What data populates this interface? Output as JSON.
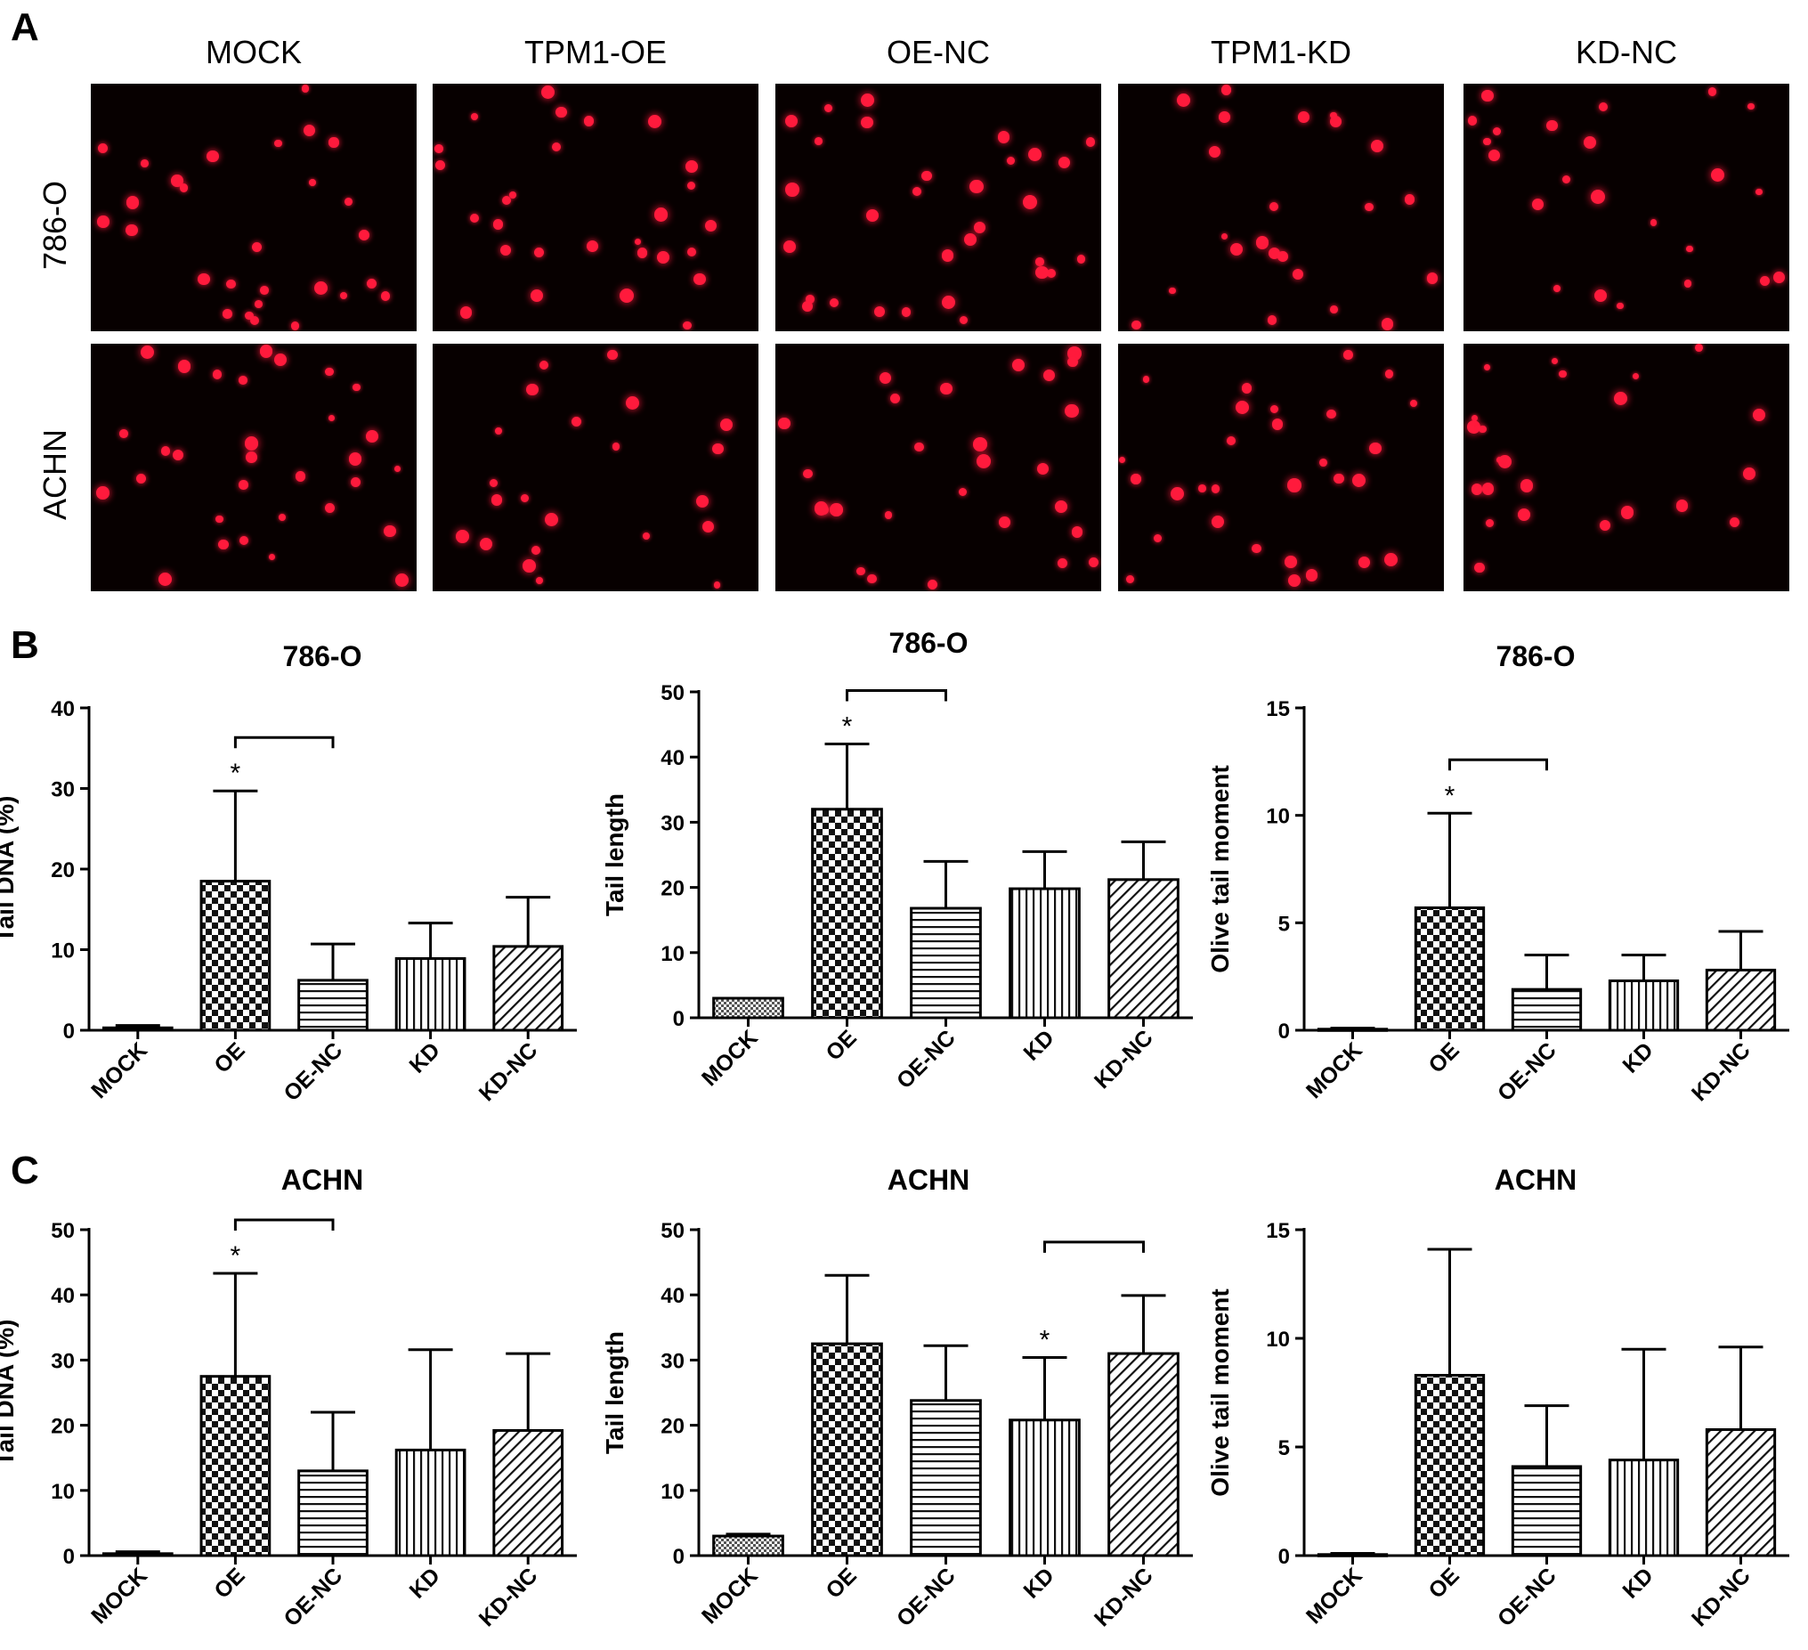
{
  "panel_labels": {
    "a": "A",
    "b": "B",
    "c": "C"
  },
  "panel_a": {
    "columns": [
      "MOCK",
      "TPM1-OE",
      "OE-NC",
      "TPM1-KD",
      "KD-NC"
    ],
    "rows": [
      "786-O",
      "ACHN"
    ],
    "cell_color": "#ff1a3c",
    "background_color": "#070000"
  },
  "chart_data": [
    {
      "type": "bar",
      "title": "786-O",
      "ylabel": "Tail DNA (%)",
      "xlabel": "",
      "categories": [
        "MOCK",
        "OE",
        "OE-NC",
        "KD",
        "KD-NC"
      ],
      "values": [
        0.3,
        18.5,
        6.2,
        8.9,
        10.4
      ],
      "errors": [
        0.3,
        11.2,
        4.5,
        4.4,
        6.1
      ],
      "ylim": [
        0,
        40
      ],
      "yticks": [
        0,
        10,
        20,
        30,
        40
      ],
      "significance": [
        {
          "from": "OE",
          "to": "OE-NC",
          "star_on": "OE",
          "label": "*"
        }
      ]
    },
    {
      "type": "bar",
      "title": "786-O",
      "ylabel": "Tail length",
      "xlabel": "",
      "categories": [
        "MOCK",
        "OE",
        "OE-NC",
        "KD",
        "KD-NC"
      ],
      "values": [
        3.0,
        32.0,
        16.8,
        19.8,
        21.2
      ],
      "errors": [
        0,
        10.0,
        7.2,
        5.7,
        5.8
      ],
      "ylim": [
        0,
        50
      ],
      "yticks": [
        0,
        10,
        20,
        30,
        40,
        50
      ],
      "significance": [
        {
          "from": "OE",
          "to": "OE-NC",
          "star_on": "OE",
          "label": "*"
        }
      ]
    },
    {
      "type": "bar",
      "title": "786-O",
      "ylabel": "Olive tail moment",
      "xlabel": "",
      "categories": [
        "MOCK",
        "OE",
        "OE-NC",
        "KD",
        "KD-NC"
      ],
      "values": [
        0.05,
        5.7,
        1.9,
        2.3,
        2.8
      ],
      "errors": [
        0.05,
        4.4,
        1.6,
        1.2,
        1.8
      ],
      "ylim": [
        0,
        15
      ],
      "yticks": [
        0,
        5,
        10,
        15
      ],
      "significance": [
        {
          "from": "OE",
          "to": "OE-NC",
          "star_on": "OE",
          "label": "*"
        }
      ]
    },
    {
      "type": "bar",
      "title": "ACHN",
      "ylabel": "Tail DNA (%)",
      "xlabel": "",
      "categories": [
        "MOCK",
        "OE",
        "OE-NC",
        "KD",
        "KD-NC"
      ],
      "values": [
        0.3,
        27.5,
        13.0,
        16.2,
        19.2
      ],
      "errors": [
        0.3,
        15.8,
        9.0,
        15.4,
        11.8
      ],
      "ylim": [
        0,
        50
      ],
      "yticks": [
        0,
        10,
        20,
        30,
        40,
        50
      ],
      "significance": [
        {
          "from": "OE",
          "to": "OE-NC",
          "star_on": "OE",
          "label": "*"
        }
      ]
    },
    {
      "type": "bar",
      "title": "ACHN",
      "ylabel": "Tail length",
      "xlabel": "",
      "categories": [
        "MOCK",
        "OE",
        "OE-NC",
        "KD",
        "KD-NC"
      ],
      "values": [
        3.0,
        32.5,
        23.8,
        20.8,
        31.0
      ],
      "errors": [
        0.3,
        10.5,
        8.4,
        9.6,
        8.9
      ],
      "ylim": [
        0,
        50
      ],
      "yticks": [
        0,
        10,
        20,
        30,
        40,
        50
      ],
      "significance": [
        {
          "from": "KD",
          "to": "KD-NC",
          "star_on": "KD",
          "label": "*"
        }
      ]
    },
    {
      "type": "bar",
      "title": "ACHN",
      "ylabel": "Olive tail moment",
      "xlabel": "",
      "categories": [
        "MOCK",
        "OE",
        "OE-NC",
        "KD",
        "KD-NC"
      ],
      "values": [
        0.05,
        8.3,
        4.1,
        4.4,
        5.8
      ],
      "errors": [
        0.05,
        5.8,
        2.8,
        5.1,
        3.8
      ],
      "ylim": [
        0,
        15
      ],
      "yticks": [
        0,
        5,
        10,
        15
      ],
      "significance": []
    }
  ],
  "bar_patterns": [
    "dots",
    "checker",
    "hlines",
    "vlines",
    "diagonal"
  ]
}
